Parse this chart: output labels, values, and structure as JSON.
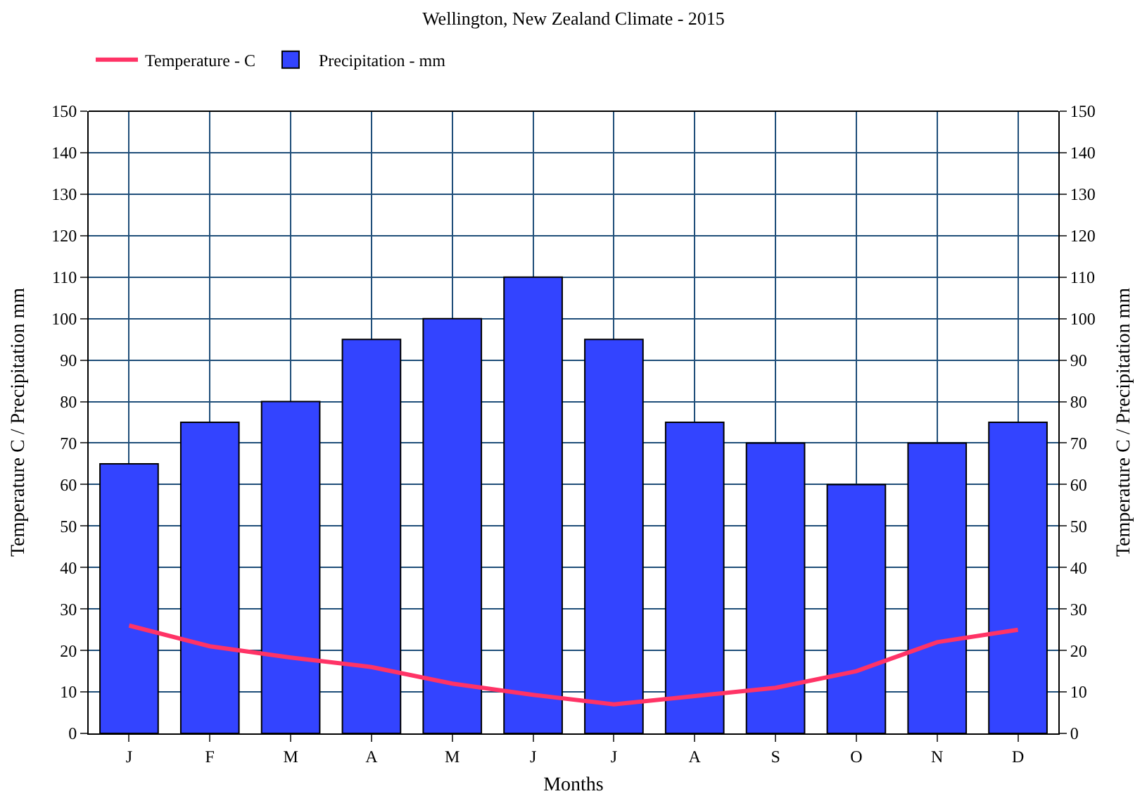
{
  "chart_data": {
    "type": "bar",
    "title": "Wellington, New Zealand Climate - 2015",
    "xlabel": "Months",
    "ylabel": "Temperature C / Precipitation mm",
    "y2label": "Temperature C / Precipitation mm",
    "categories": [
      "J",
      "F",
      "M",
      "A",
      "M",
      "J",
      "J",
      "A",
      "S",
      "O",
      "N",
      "D"
    ],
    "series": [
      {
        "name": "Temperature - C",
        "type": "line",
        "color": "#ff3366",
        "values": [
          26,
          21,
          18.3,
          16,
          12,
          9.3,
          7,
          9,
          11,
          15,
          22,
          25
        ]
      },
      {
        "name": "Precipitation - mm",
        "color": "#3344ff",
        "values": [
          65,
          75,
          80,
          95,
          100,
          110,
          95,
          75,
          70,
          60,
          70,
          75
        ]
      }
    ],
    "ylim": [
      0,
      150
    ],
    "yticks": [
      0,
      10,
      20,
      30,
      40,
      50,
      60,
      70,
      80,
      90,
      100,
      110,
      120,
      130,
      140,
      150
    ],
    "y2lim": [
      0,
      150
    ],
    "y2ticks": [
      0,
      10,
      20,
      30,
      40,
      50,
      60,
      70,
      80,
      90,
      100,
      110,
      120,
      130,
      140,
      150
    ],
    "grid": true,
    "legend": "top left",
    "marker": "none",
    "line_style": "solid"
  }
}
